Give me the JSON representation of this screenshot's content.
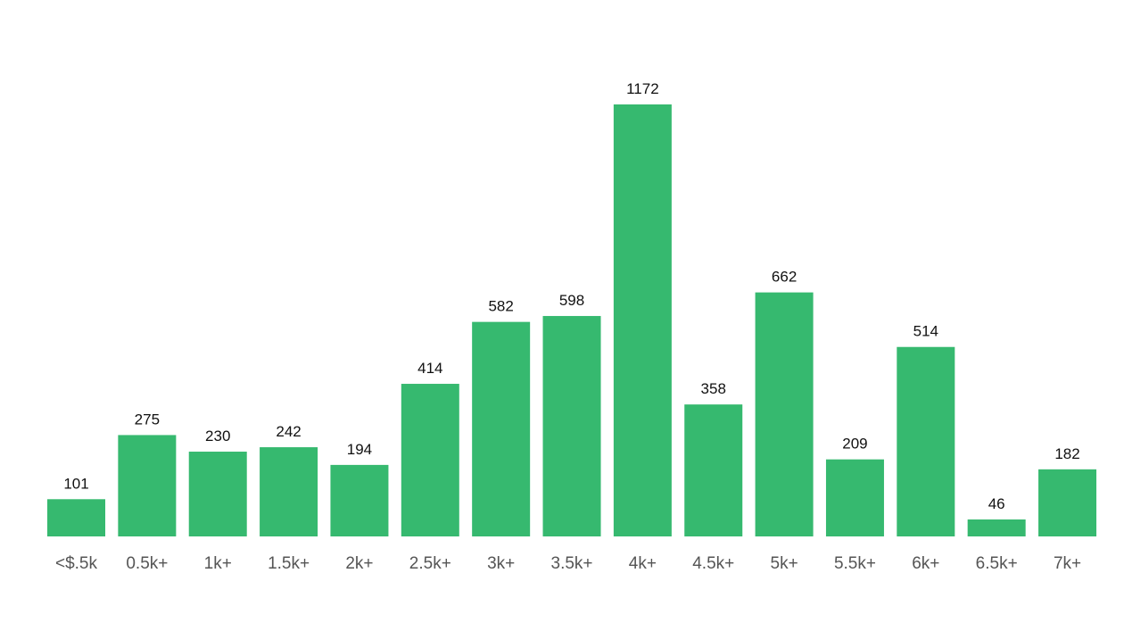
{
  "chart_data": {
    "type": "bar",
    "categories": [
      "<$.5k",
      "0.5k+",
      "1k+",
      "1.5k+",
      "2k+",
      "2.5k+",
      "3k+",
      "3.5k+",
      "4k+",
      "4.5k+",
      "5k+",
      "5.5k+",
      "6k+",
      "6.5k+",
      "7k+"
    ],
    "values": [
      101,
      275,
      230,
      242,
      194,
      414,
      582,
      598,
      1172,
      358,
      662,
      209,
      514,
      46,
      182
    ],
    "color": "#36b96f"
  }
}
